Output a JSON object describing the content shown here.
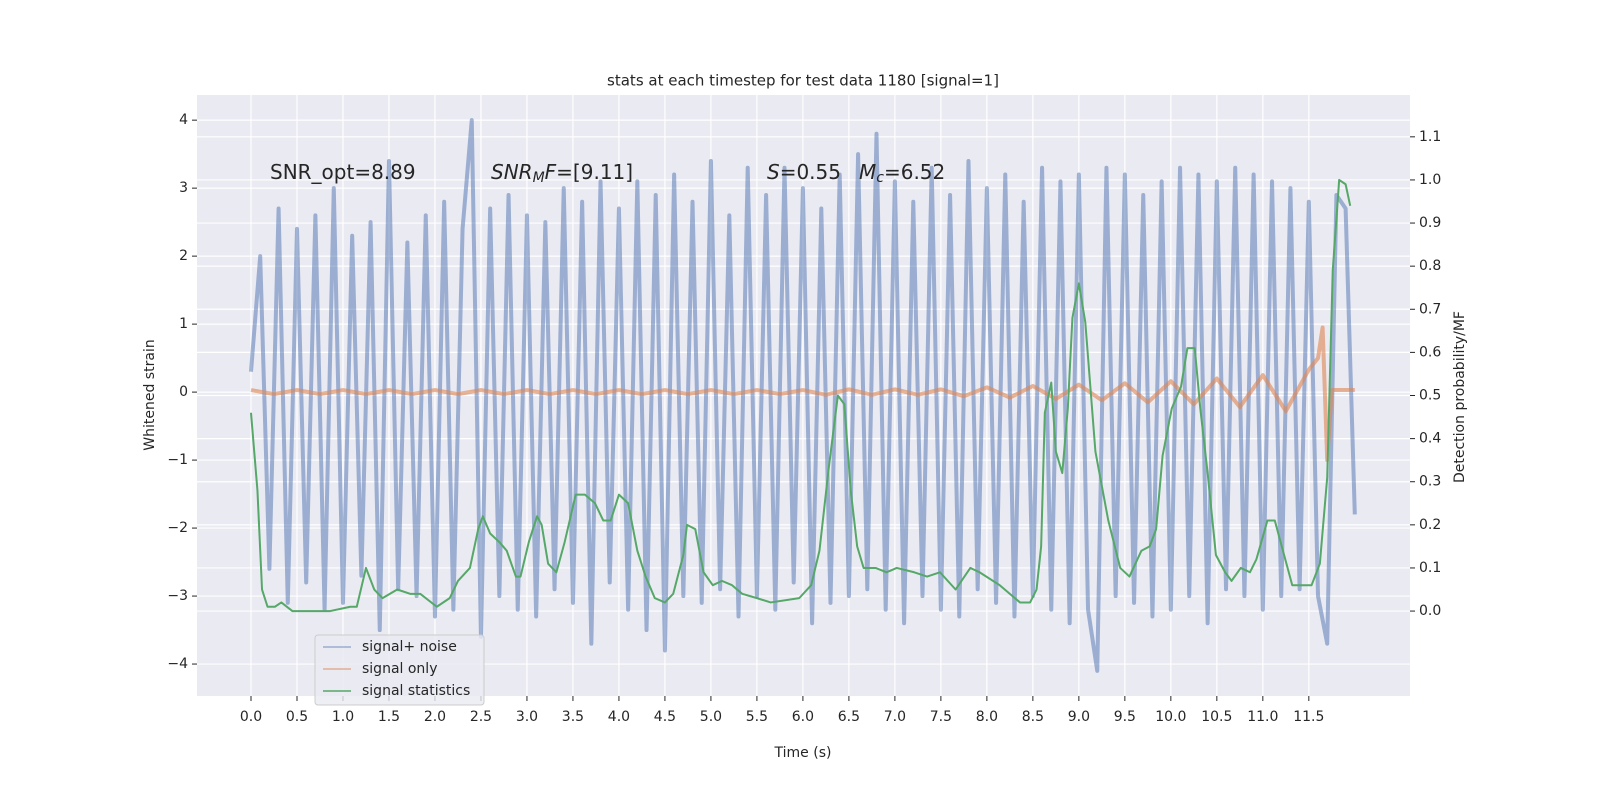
{
  "chart_data": {
    "type": "line",
    "title": "stats at each timestep for test data 1180 [signal=1]",
    "xlabel": "Time (s)",
    "ylabel": "Whitened strain",
    "y2label": "Detection probability/MF",
    "xlim": [
      -0.587,
      12.6
    ],
    "ylim": [
      -4.47,
      4.37
    ],
    "y2lim": [
      -0.197,
      1.197
    ],
    "xticks": [
      {
        "value": 0,
        "label": "0.0"
      },
      0.5,
      {
        "value": 1,
        "label": "1.0"
      },
      1.5,
      {
        "value": 2,
        "label": "2.0"
      },
      2.5,
      {
        "value": 3,
        "label": "3.0"
      },
      3.5,
      {
        "value": 4,
        "label": "4.0"
      },
      4.5,
      {
        "value": 5,
        "label": "5.0"
      },
      5.5,
      {
        "value": 6,
        "label": "6.0"
      },
      6.5,
      {
        "value": 7,
        "label": "7.0"
      },
      7.5,
      {
        "value": 8,
        "label": "8.0"
      },
      8.5,
      {
        "value": 9,
        "label": "9.0"
      },
      9.5,
      {
        "value": 10,
        "label": "10.0"
      },
      10.5,
      {
        "value": 11,
        "label": "11.0"
      },
      11.5
    ],
    "yticks": [
      {
        "value": -4,
        "label": "−4"
      },
      {
        "value": -3,
        "label": "−3"
      },
      {
        "value": -2,
        "label": "−2"
      },
      {
        "value": -1,
        "label": "−1"
      },
      0,
      1,
      2,
      3,
      4
    ],
    "y2ticks": [
      {
        "value": 0,
        "label": "0.0"
      },
      0.1,
      0.2,
      0.3,
      0.4,
      0.5,
      0.6,
      0.7,
      0.8,
      0.9,
      {
        "value": 1,
        "label": "1.0"
      },
      1.1
    ],
    "grid": true,
    "legend": "lower left",
    "annotations": [
      [
        {
          "text": "SNR_opt=8.89",
          "style": "normal"
        }
      ],
      [
        {
          "text": "SNR",
          "style": "italic"
        },
        {
          "text": "M",
          "style": "sub"
        },
        {
          "text": "F",
          "style": "italic"
        },
        {
          "text": "=[9.11]",
          "style": "normal"
        }
      ],
      [
        {
          "text": "S",
          "style": "italic"
        },
        {
          "text": "=0.55",
          "style": "normal"
        }
      ],
      [
        {
          "text": "M",
          "style": "italic"
        },
        {
          "text": "c",
          "style": "sub"
        },
        {
          "text": "=6.52",
          "style": "normal"
        }
      ]
    ],
    "series": [
      {
        "name": "signal+ noise",
        "color": "#4c72b0",
        "opacity": 0.5,
        "x": [
          0,
          0.1,
          0.2,
          0.3,
          0.4,
          0.5,
          0.6,
          0.7,
          0.8,
          0.9,
          1,
          1.1,
          1.2,
          1.3,
          1.4,
          1.5,
          1.6,
          1.7,
          1.8,
          1.9,
          2,
          2.1,
          2.2,
          2.3,
          2.4,
          2.5,
          2.6,
          2.7,
          2.8,
          2.9,
          3,
          3.1,
          3.2,
          3.3,
          3.4,
          3.5,
          3.6,
          3.7,
          3.8,
          3.9,
          4,
          4.1,
          4.2,
          4.3,
          4.4,
          4.5,
          4.6,
          4.7,
          4.8,
          4.9,
          5,
          5.1,
          5.2,
          5.3,
          5.4,
          5.5,
          5.6,
          5.7,
          5.8,
          5.9,
          6,
          6.1,
          6.2,
          6.3,
          6.4,
          6.5,
          6.6,
          6.7,
          6.8,
          6.9,
          7,
          7.1,
          7.2,
          7.3,
          7.4,
          7.5,
          7.6,
          7.7,
          7.8,
          7.9,
          8,
          8.1,
          8.2,
          8.3,
          8.4,
          8.5,
          8.6,
          8.7,
          8.8,
          8.9,
          9,
          9.1,
          9.2,
          9.3,
          9.4,
          9.5,
          9.6,
          9.7,
          9.8,
          9.9,
          10,
          10.1,
          10.2,
          10.3,
          10.4,
          10.5,
          10.6,
          10.7,
          10.8,
          10.9,
          11,
          11.1,
          11.2,
          11.3,
          11.4,
          11.5,
          11.6,
          11.7,
          11.8,
          11.9,
          12
        ],
        "values": [
          0.3,
          2.0,
          -2.6,
          2.7,
          -3.1,
          2.4,
          -2.8,
          2.6,
          -3.2,
          3.0,
          -3.1,
          2.3,
          -2.7,
          2.5,
          -3.5,
          3.4,
          -2.9,
          2.2,
          -3.0,
          2.6,
          -3.3,
          2.8,
          -3.2,
          2.4,
          4.0,
          -3.6,
          2.7,
          -3.0,
          2.9,
          -3.2,
          2.6,
          -3.3,
          2.5,
          -2.9,
          3.0,
          -3.1,
          2.8,
          -3.7,
          3.1,
          -2.8,
          2.7,
          -3.2,
          3.1,
          -3.5,
          2.9,
          -3.8,
          3.2,
          -3.0,
          2.8,
          -3.1,
          3.4,
          -2.9,
          2.6,
          -3.3,
          3.3,
          -3.0,
          2.9,
          -3.2,
          3.3,
          -2.8,
          3.0,
          -3.4,
          2.7,
          -3.1,
          3.2,
          -3.0,
          3.5,
          -2.9,
          3.8,
          -3.2,
          3.1,
          -3.4,
          2.8,
          -3.0,
          3.3,
          -3.2,
          2.9,
          -3.3,
          3.4,
          -2.9,
          3.0,
          -3.1,
          3.2,
          -3.3,
          2.8,
          -3.0,
          3.3,
          -3.2,
          3.1,
          -3.4,
          3.2,
          -3.2,
          -4.1,
          3.3,
          -3.0,
          3.2,
          -3.1,
          2.9,
          -3.3,
          3.1,
          -3.2,
          3.3,
          -3.0,
          3.2,
          -3.4,
          3.1,
          -2.9,
          3.3,
          -3.0,
          3.2,
          -3.2,
          3.1,
          -3.0,
          3.0,
          -2.9,
          2.8,
          -3.0,
          -3.7,
          2.9,
          2.7,
          -1.8
        ]
      },
      {
        "name": "signal only",
        "color": "#dd8452",
        "opacity": 0.6,
        "x": [
          0,
          0.25,
          0.5,
          0.75,
          1,
          1.25,
          1.5,
          1.75,
          2,
          2.25,
          2.5,
          2.75,
          3,
          3.25,
          3.5,
          3.75,
          4,
          4.25,
          4.5,
          4.75,
          5,
          5.25,
          5.5,
          5.75,
          6,
          6.25,
          6.5,
          6.75,
          7,
          7.25,
          7.5,
          7.75,
          8,
          8.25,
          8.5,
          8.75,
          9,
          9.25,
          9.5,
          9.75,
          10,
          10.25,
          10.5,
          10.75,
          11,
          11.25,
          11.5,
          11.6,
          11.65,
          11.7,
          11.75,
          12
        ],
        "values": [
          0.03,
          -0.03,
          0.03,
          -0.03,
          0.03,
          -0.03,
          0.03,
          -0.03,
          0.03,
          -0.03,
          0.03,
          -0.03,
          0.03,
          -0.03,
          0.03,
          -0.03,
          0.03,
          -0.03,
          0.03,
          -0.03,
          0.03,
          -0.03,
          0.03,
          -0.03,
          0.03,
          -0.04,
          0.04,
          -0.04,
          0.04,
          -0.04,
          0.04,
          -0.06,
          0.07,
          -0.08,
          0.09,
          -0.1,
          0.11,
          -0.12,
          0.13,
          -0.15,
          0.16,
          -0.18,
          0.2,
          -0.22,
          0.25,
          -0.28,
          0.33,
          0.5,
          0.95,
          -1.0,
          0.03,
          0.03
        ]
      },
      {
        "name": "signal statistics",
        "color": "#55a868",
        "axis": "y2",
        "x": [
          0,
          0.07,
          0.12,
          0.18,
          0.26,
          0.33,
          0.45,
          0.64,
          0.86,
          1.08,
          1.15,
          1.25,
          1.34,
          1.43,
          1.59,
          1.73,
          1.84,
          2.02,
          2.16,
          2.25,
          2.38,
          2.47,
          2.52,
          2.6,
          2.7,
          2.78,
          2.88,
          2.93,
          3.02,
          3.11,
          3.16,
          3.23,
          3.32,
          3.41,
          3.53,
          3.63,
          3.74,
          3.83,
          3.91,
          4.0,
          4.1,
          4.2,
          4.29,
          4.39,
          4.5,
          4.59,
          4.7,
          4.74,
          4.83,
          4.92,
          5.02,
          5.12,
          5.23,
          5.34,
          5.5,
          5.65,
          5.96,
          6.09,
          6.18,
          6.28,
          6.38,
          6.45,
          6.52,
          6.59,
          6.66,
          6.79,
          6.91,
          7.02,
          7.21,
          7.35,
          7.49,
          7.66,
          7.82,
          7.92,
          8.14,
          8.36,
          8.47,
          8.54,
          8.59,
          8.63,
          8.7,
          8.75,
          8.82,
          8.88,
          8.93,
          9.0,
          9.07,
          9.18,
          9.32,
          9.45,
          9.55,
          9.68,
          9.77,
          9.84,
          9.91,
          10.01,
          10.11,
          10.18,
          10.26,
          10.32,
          10.4,
          10.49,
          10.59,
          10.66,
          10.76,
          10.86,
          10.93,
          11.05,
          11.13,
          11.32,
          11.53,
          11.62,
          11.7,
          11.76,
          11.83,
          11.9,
          11.95
        ],
        "values": [
          0.46,
          0.28,
          0.05,
          0.01,
          0.01,
          0.02,
          0.0,
          0.0,
          0.0,
          0.01,
          0.01,
          0.1,
          0.05,
          0.03,
          0.05,
          0.04,
          0.04,
          0.01,
          0.03,
          0.07,
          0.1,
          0.19,
          0.22,
          0.18,
          0.16,
          0.14,
          0.08,
          0.08,
          0.16,
          0.22,
          0.2,
          0.11,
          0.09,
          0.16,
          0.27,
          0.27,
          0.25,
          0.21,
          0.21,
          0.27,
          0.25,
          0.14,
          0.08,
          0.03,
          0.02,
          0.04,
          0.13,
          0.2,
          0.19,
          0.09,
          0.06,
          0.07,
          0.06,
          0.04,
          0.03,
          0.02,
          0.03,
          0.06,
          0.14,
          0.33,
          0.5,
          0.48,
          0.28,
          0.15,
          0.1,
          0.1,
          0.09,
          0.1,
          0.09,
          0.08,
          0.09,
          0.05,
          0.1,
          0.09,
          0.06,
          0.02,
          0.02,
          0.05,
          0.15,
          0.46,
          0.53,
          0.37,
          0.32,
          0.47,
          0.68,
          0.76,
          0.67,
          0.37,
          0.21,
          0.1,
          0.08,
          0.14,
          0.15,
          0.19,
          0.36,
          0.47,
          0.52,
          0.61,
          0.61,
          0.47,
          0.32,
          0.13,
          0.09,
          0.07,
          0.1,
          0.09,
          0.12,
          0.21,
          0.21,
          0.06,
          0.06,
          0.11,
          0.31,
          0.79,
          1.0,
          0.99,
          0.94
        ]
      }
    ]
  }
}
